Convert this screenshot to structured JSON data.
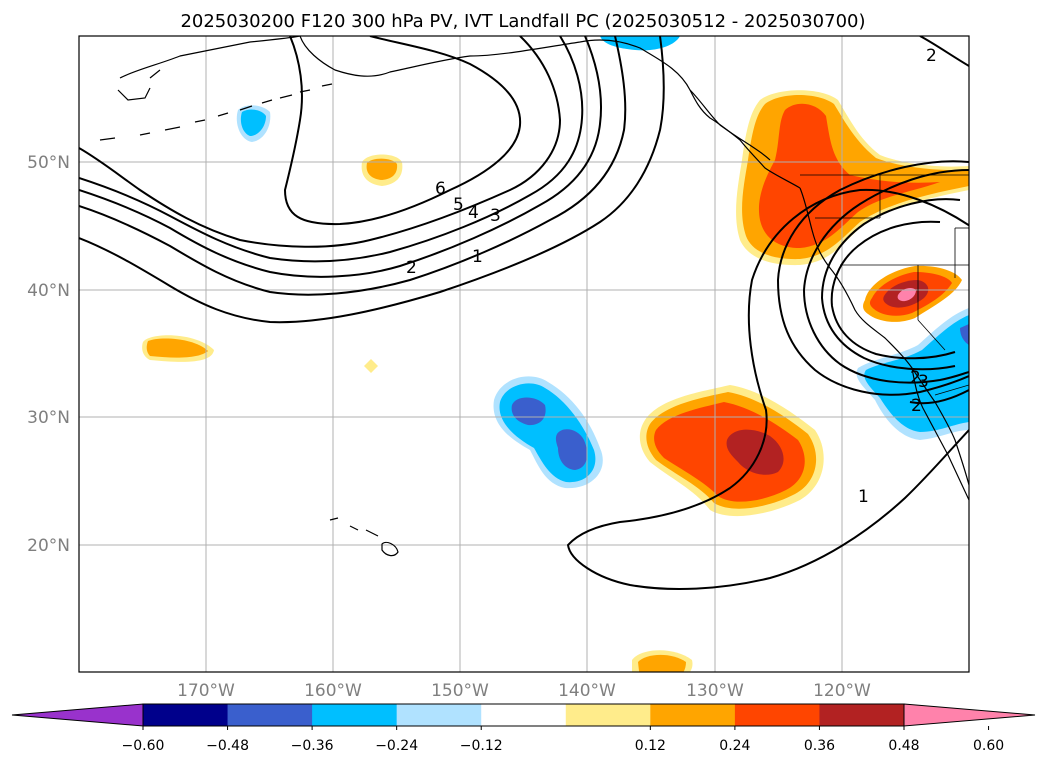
{
  "title": "2025030200 F120 300 hPa PV, IVT Landfall PC (2025030512 - 2025030700)",
  "map": {
    "lat_labels": [
      "50°N",
      "40°N",
      "30°N",
      "20°N"
    ],
    "lon_labels": [
      "170°W",
      "160°W",
      "150°W",
      "140°W",
      "130°W",
      "120°W"
    ],
    "contour_labels": [
      "6",
      "5",
      "4",
      "3",
      "2",
      "1",
      "2",
      "1",
      "2",
      "3",
      "2"
    ],
    "gridlines": true
  },
  "colorbar": {
    "tick_labels": [
      "−0.60",
      "−0.48",
      "−0.36",
      "−0.24",
      "−0.12",
      "0.12",
      "0.24",
      "0.36",
      "0.48",
      "0.60"
    ],
    "colors": [
      "#9932cc",
      "#00008b",
      "#3a5fcd",
      "#00bfff",
      "#b0e2ff",
      "#ffffff",
      "#ffec8b",
      "#ffa500",
      "#ff4500",
      "#b22222",
      "#ff82ab",
      "#ff82ab"
    ],
    "extend": "both"
  }
}
